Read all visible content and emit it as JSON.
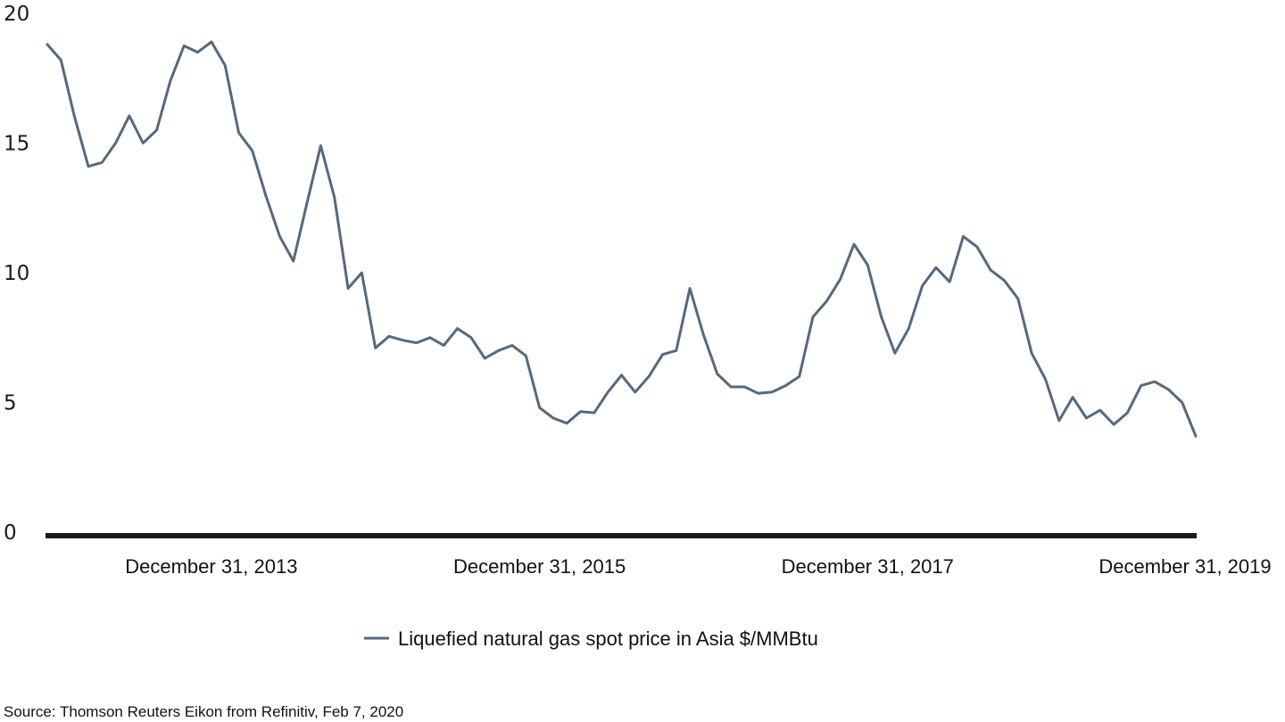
{
  "chart_data": {
    "type": "line",
    "x_start": "2012-12-31",
    "x_step_months": 1,
    "x_ticks": [
      "December 31, 2013",
      "December 31, 2015",
      "December 31, 2017",
      "December 31, 2019"
    ],
    "ylim": [
      0,
      20
    ],
    "y_ticks": [
      "0",
      "5",
      "10",
      "15",
      "20"
    ],
    "series": [
      {
        "name": "Liquefied natural gas spot price in Asia $/MMBtu",
        "color": "#55697e",
        "values": [
          18.8,
          18.2,
          16.0,
          14.1,
          14.25,
          15.0,
          16.05,
          15.0,
          15.5,
          17.4,
          18.75,
          18.5,
          18.9,
          18.0,
          15.4,
          14.7,
          12.95,
          11.4,
          10.45,
          12.7,
          14.9,
          12.9,
          9.4,
          10.0,
          7.1,
          7.55,
          7.4,
          7.3,
          7.5,
          7.2,
          7.85,
          7.5,
          6.7,
          7.0,
          7.2,
          6.8,
          4.8,
          4.4,
          4.2,
          4.65,
          4.6,
          5.4,
          6.05,
          5.4,
          6.0,
          6.85,
          7.0,
          9.4,
          7.6,
          6.1,
          5.6,
          5.6,
          5.35,
          5.4,
          5.65,
          6.0,
          8.3,
          8.9,
          9.75,
          11.1,
          10.3,
          8.3,
          6.9,
          7.85,
          9.5,
          10.2,
          9.65,
          11.4,
          11.0,
          10.1,
          9.7,
          9.0,
          6.9,
          5.9,
          4.3,
          5.2,
          4.4,
          4.7,
          4.15,
          4.6,
          5.65,
          5.8,
          5.5,
          5.0,
          3.7
        ]
      }
    ],
    "source": "Source: Thomson Reuters Eikon from Refinitiv, Feb 7, 2020"
  }
}
